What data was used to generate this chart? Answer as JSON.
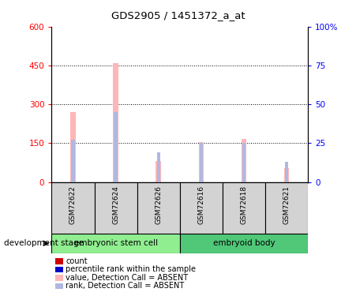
{
  "title": "GDS2905 / 1451372_a_at",
  "samples": [
    "GSM72622",
    "GSM72624",
    "GSM72626",
    "GSM72616",
    "GSM72618",
    "GSM72621"
  ],
  "group_labels": [
    "embryonic stem cell",
    "embryoid body"
  ],
  "value_absent": [
    270,
    460,
    80,
    155,
    165,
    55
  ],
  "rank_absent_pct": [
    27,
    45,
    19,
    25,
    25,
    13
  ],
  "ylim_left": [
    0,
    600
  ],
  "ylim_right": [
    0,
    100
  ],
  "yticks_left": [
    0,
    150,
    300,
    450,
    600
  ],
  "yticks_right": [
    0,
    25,
    50,
    75,
    100
  ],
  "color_value_absent": "#FFB6B6",
  "color_rank_absent": "#B0B8E0",
  "color_count": "#CC0000",
  "color_percentile": "#0000CC",
  "group_color_left": "#90EE90",
  "group_color_right": "#50C878",
  "sample_box_color": "#D3D3D3",
  "legend_items": [
    {
      "label": "count",
      "color": "#CC0000"
    },
    {
      "label": "percentile rank within the sample",
      "color": "#0000CC"
    },
    {
      "label": "value, Detection Call = ABSENT",
      "color": "#FFB6B6"
    },
    {
      "label": "rank, Detection Call = ABSENT",
      "color": "#B0B8E0"
    }
  ],
  "development_stage_label": "development stage"
}
